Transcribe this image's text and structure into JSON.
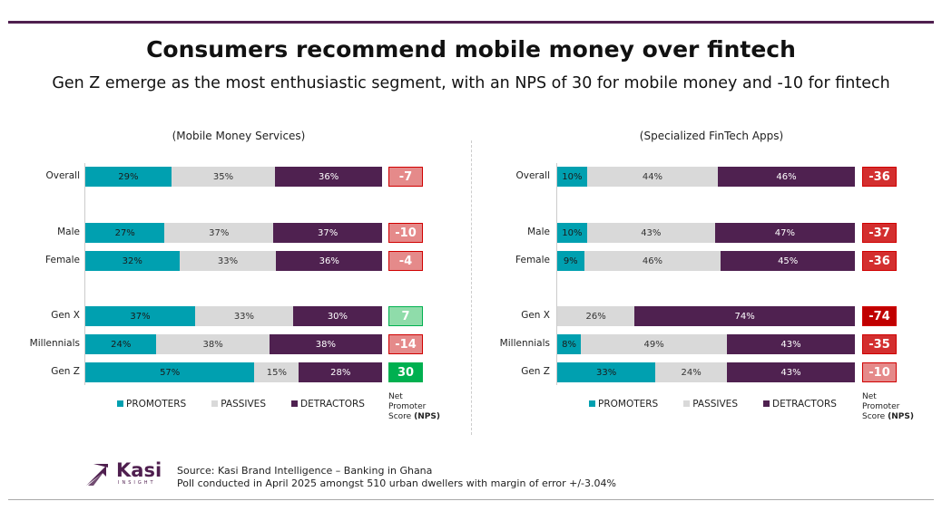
{
  "title": "Consumers recommend mobile money over fintech",
  "subtitle": "Gen Z emerge as the most enthusiastic segment, with an NPS of 30 for mobile money and -10 for fintech",
  "colors": {
    "promoters": "#00a0b0",
    "passives": "#d9d9d9",
    "detractors": "#4f2150",
    "brand": "#4f1f4f"
  },
  "chart_data": [
    {
      "type": "bar",
      "stacked": true,
      "orientation": "horizontal",
      "title": "(Mobile Money Services)",
      "categories": [
        "Overall",
        "Male",
        "Female",
        "Gen X",
        "Millennials",
        "Gen Z"
      ],
      "series": [
        {
          "name": "PROMOTERS",
          "values": [
            29,
            27,
            32,
            37,
            24,
            57
          ]
        },
        {
          "name": "PASSIVES",
          "values": [
            35,
            37,
            33,
            33,
            38,
            15
          ]
        },
        {
          "name": "DETRACTORS",
          "values": [
            36,
            37,
            36,
            30,
            38,
            28
          ]
        }
      ],
      "nps": [
        -7,
        -10,
        -4,
        7,
        -14,
        30
      ],
      "nps_colors": [
        "#e58a8a",
        "#e58a8a",
        "#e58a8a",
        "#8fdcaa",
        "#e58a8a",
        "#00b050"
      ]
    },
    {
      "type": "bar",
      "stacked": true,
      "orientation": "horizontal",
      "title": "(Specialized FinTech Apps)",
      "categories": [
        "Overall",
        "Male",
        "Female",
        "Gen X",
        "Millennials",
        "Gen Z"
      ],
      "series": [
        {
          "name": "PROMOTERS",
          "values": [
            10,
            10,
            9,
            0,
            8,
            33
          ]
        },
        {
          "name": "PASSIVES",
          "values": [
            44,
            43,
            46,
            26,
            49,
            24
          ]
        },
        {
          "name": "DETRACTORS",
          "values": [
            46,
            47,
            45,
            74,
            43,
            43
          ]
        }
      ],
      "nps": [
        -36,
        -37,
        -36,
        -74,
        -35,
        -10
      ],
      "nps_colors": [
        "#d32f2f",
        "#d32f2f",
        "#d32f2f",
        "#c00000",
        "#d32f2f",
        "#e58a8a"
      ]
    }
  ],
  "legend": [
    "PROMOTERS",
    "PASSIVES",
    "DETRACTORS"
  ],
  "nps_note": {
    "line1": "Net",
    "line2": "Promoter",
    "line3": "Score",
    "bold": "(NPS)"
  },
  "logo": {
    "name": "Kasi",
    "sub": "INSIGHT"
  },
  "source": {
    "line1": "Source: Kasi Brand Intelligence – Banking in Ghana",
    "line2": "Poll conducted in April 2025 amongst 510 urban dwellers with margin of error +/-3.04%"
  }
}
